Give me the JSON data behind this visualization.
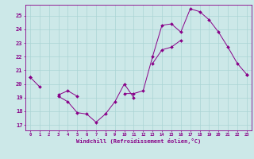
{
  "xlabel": "Windchill (Refroidissement éolien,°C)",
  "bg_color": "#cce8e8",
  "line_color": "#880088",
  "grid_color": "#aad4d4",
  "x_hours": [
    0,
    1,
    2,
    3,
    4,
    5,
    6,
    7,
    8,
    9,
    10,
    11,
    12,
    13,
    14,
    15,
    16,
    17,
    18,
    19,
    20,
    21,
    22,
    23
  ],
  "line1": [
    20.5,
    19.8,
    null,
    19.1,
    18.7,
    17.9,
    17.8,
    17.2,
    17.8,
    18.7,
    20.0,
    19.0,
    null,
    null,
    null,
    null,
    null,
    null,
    null,
    null,
    null,
    null,
    null,
    null
  ],
  "line2": [
    null,
    null,
    null,
    19.2,
    19.5,
    19.1,
    null,
    null,
    null,
    null,
    19.3,
    19.3,
    19.5,
    22.0,
    24.3,
    24.4,
    23.8,
    25.5,
    25.3,
    24.7,
    23.8,
    22.7,
    21.5,
    20.7
  ],
  "line3": [
    20.5,
    null,
    null,
    null,
    null,
    null,
    null,
    null,
    null,
    null,
    null,
    null,
    null,
    21.5,
    22.5,
    22.7,
    23.2,
    null,
    null,
    null,
    null,
    null,
    null,
    20.7
  ],
  "yticks": [
    17,
    18,
    19,
    20,
    21,
    22,
    23,
    24,
    25
  ],
  "xticks": [
    0,
    1,
    2,
    3,
    4,
    5,
    6,
    7,
    8,
    9,
    10,
    11,
    12,
    13,
    14,
    15,
    16,
    17,
    18,
    19,
    20,
    21,
    22,
    23
  ],
  "xlim": [
    -0.5,
    23.5
  ],
  "ylim": [
    16.6,
    25.8
  ]
}
